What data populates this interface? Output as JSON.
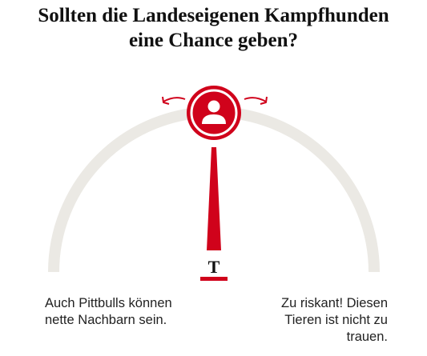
{
  "title": {
    "line1": "Sollten die Landeseigenen Kampfhunden",
    "line2": "eine Chance geben?"
  },
  "gauge": {
    "position": 0.5,
    "colors": {
      "track": "#ebe9e4",
      "accent": "#d0021b",
      "dark": "#111111"
    },
    "knob_icon": "person-icon",
    "pointer_label": "T"
  },
  "options": {
    "left": {
      "line1": "Auch Pittbulls können",
      "line2": "nette Nachbarn sein."
    },
    "right": {
      "line1": "Zu riskant! Diesen",
      "line2": "Tieren ist nicht zu",
      "line3": "trauen."
    }
  }
}
